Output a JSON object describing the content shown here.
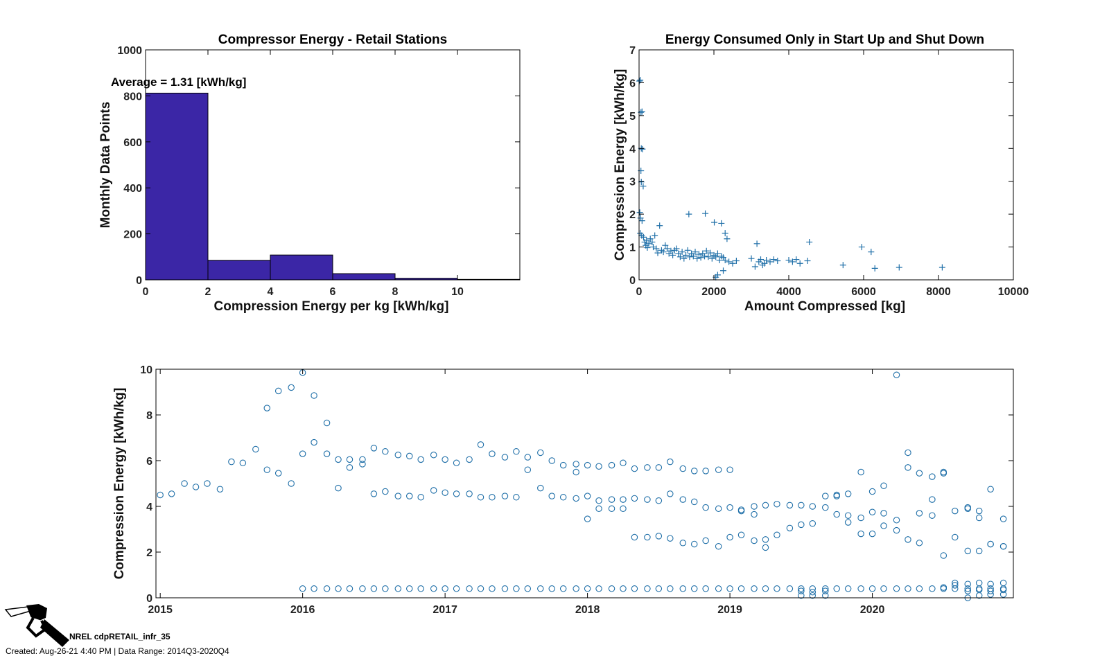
{
  "chart_data": [
    {
      "type": "bar",
      "title": "Compressor Energy - Retail Stations",
      "xlabel": "Compression Energy per kg [kWh/kg]",
      "ylabel": "Monthly Data Points",
      "annotation": "Average = 1.31 [kWh/kg]",
      "color": "#3b26a6",
      "xlim": [
        0,
        12
      ],
      "ylim": [
        0,
        1000
      ],
      "xticks": [
        0,
        2,
        4,
        6,
        8,
        10
      ],
      "yticks": [
        0,
        200,
        400,
        600,
        800,
        1000
      ],
      "bins": [
        [
          0,
          2
        ],
        [
          2,
          4
        ],
        [
          4,
          6
        ],
        [
          6,
          8
        ],
        [
          8,
          10
        ],
        [
          10,
          12
        ]
      ],
      "values": [
        812,
        85,
        108,
        27,
        7,
        2
      ]
    },
    {
      "type": "scatter",
      "title": "Energy Consumed Only in Start Up and Shut Down",
      "xlabel": "Amount Compressed [kg]",
      "ylabel": "Compression Energy [kWh/kg]",
      "marker": "+",
      "color": "#1f6fa8",
      "xlim": [
        0,
        10000
      ],
      "ylim": [
        0,
        7
      ],
      "xticks": [
        0,
        2000,
        4000,
        6000,
        8000,
        10000
      ],
      "yticks": [
        0,
        1,
        2,
        3,
        4,
        5,
        6,
        7
      ],
      "points": [
        [
          10,
          6.05
        ],
        [
          30,
          6.08
        ],
        [
          50,
          5.1
        ],
        [
          80,
          5.12
        ],
        [
          60,
          4.0
        ],
        [
          90,
          3.98
        ],
        [
          50,
          3.32
        ],
        [
          60,
          2.98
        ],
        [
          110,
          2.85
        ],
        [
          20,
          2.05
        ],
        [
          40,
          1.88
        ],
        [
          80,
          1.8
        ],
        [
          30,
          1.42
        ],
        [
          70,
          1.35
        ],
        [
          120,
          1.3
        ],
        [
          150,
          1.15
        ],
        [
          180,
          1.05
        ],
        [
          200,
          1.2
        ],
        [
          220,
          0.98
        ],
        [
          260,
          1.1
        ],
        [
          300,
          1.25
        ],
        [
          350,
          1.15
        ],
        [
          380,
          1.0
        ],
        [
          420,
          1.35
        ],
        [
          460,
          0.95
        ],
        [
          500,
          0.82
        ],
        [
          550,
          1.65
        ],
        [
          600,
          0.9
        ],
        [
          650,
          0.85
        ],
        [
          700,
          1.05
        ],
        [
          750,
          0.95
        ],
        [
          800,
          0.8
        ],
        [
          850,
          0.88
        ],
        [
          900,
          0.75
        ],
        [
          950,
          0.9
        ],
        [
          1000,
          0.95
        ],
        [
          1050,
          0.8
        ],
        [
          1100,
          0.7
        ],
        [
          1150,
          0.85
        ],
        [
          1200,
          0.65
        ],
        [
          1250,
          0.75
        ],
        [
          1300,
          0.9
        ],
        [
          1350,
          0.7
        ],
        [
          1400,
          0.8
        ],
        [
          1450,
          0.72
        ],
        [
          1500,
          0.85
        ],
        [
          1550,
          0.65
        ],
        [
          1600,
          0.78
        ],
        [
          1650,
          0.68
        ],
        [
          1700,
          0.8
        ],
        [
          1750,
          0.72
        ],
        [
          1800,
          0.88
        ],
        [
          1850,
          0.7
        ],
        [
          1900,
          0.82
        ],
        [
          1950,
          0.65
        ],
        [
          2000,
          0.75
        ],
        [
          2050,
          0.7
        ],
        [
          2100,
          0.8
        ],
        [
          2150,
          0.6
        ],
        [
          2200,
          0.72
        ],
        [
          2250,
          0.68
        ],
        [
          2300,
          0.6
        ],
        [
          1330,
          2.0
        ],
        [
          1770,
          2.02
        ],
        [
          2010,
          1.75
        ],
        [
          2200,
          1.72
        ],
        [
          2300,
          1.42
        ],
        [
          2350,
          1.25
        ],
        [
          2050,
          0.08
        ],
        [
          2100,
          0.15
        ],
        [
          2250,
          0.28
        ],
        [
          2400,
          0.55
        ],
        [
          2500,
          0.5
        ],
        [
          2600,
          0.58
        ],
        [
          3000,
          0.65
        ],
        [
          3100,
          0.4
        ],
        [
          3150,
          1.1
        ],
        [
          3200,
          0.55
        ],
        [
          3250,
          0.62
        ],
        [
          3300,
          0.45
        ],
        [
          3350,
          0.5
        ],
        [
          3400,
          0.6
        ],
        [
          3500,
          0.55
        ],
        [
          3600,
          0.62
        ],
        [
          3700,
          0.58
        ],
        [
          4000,
          0.6
        ],
        [
          4100,
          0.55
        ],
        [
          4200,
          0.62
        ],
        [
          4300,
          0.5
        ],
        [
          4500,
          0.58
        ],
        [
          4550,
          1.15
        ],
        [
          5450,
          0.45
        ],
        [
          5950,
          1.0
        ],
        [
          6200,
          0.85
        ],
        [
          6300,
          0.35
        ],
        [
          6950,
          0.38
        ],
        [
          8100,
          0.38
        ]
      ]
    },
    {
      "type": "scatter",
      "xlabel": "",
      "ylabel": "Compression Energy [kWh/kg]",
      "marker": "o",
      "color": "#1f6fa8",
      "xlim": [
        2014.97,
        2020.99
      ],
      "ylim": [
        0,
        10
      ],
      "xticks": [
        2015,
        2016,
        2017,
        2018,
        2019,
        2020
      ],
      "yticks": [
        0,
        2,
        4,
        6,
        8,
        10
      ],
      "series": [
        {
          "x": [
            2015.0,
            2015.08,
            2015.17,
            2015.25,
            2015.33,
            2015.42,
            2015.5,
            2015.58,
            2015.67,
            2015.75,
            2015.83,
            2015.92,
            2016.0,
            2016.08,
            2016.17,
            2016.25,
            2016.33,
            2016.42,
            2016.5,
            2016.58,
            2016.67,
            2016.75,
            2016.83,
            2016.92,
            2017.0,
            2017.08,
            2017.17,
            2017.25,
            2017.33,
            2017.42,
            2017.5,
            2017.58,
            2017.67,
            2017.75,
            2017.83,
            2017.92,
            2018.0,
            2018.08,
            2018.17,
            2018.25,
            2018.33,
            2018.42,
            2018.5,
            2018.58,
            2018.67,
            2018.75,
            2018.83,
            2018.92,
            2019.0,
            2019.08,
            2019.17,
            2019.25,
            2019.33,
            2019.42,
            2019.5,
            2019.58,
            2019.67,
            2019.75,
            2019.83,
            2019.92,
            2020.0,
            2020.08,
            2020.17,
            2020.25,
            2020.33,
            2020.42,
            2020.5,
            2020.58,
            2020.67,
            2020.75,
            2020.83,
            2020.92
          ],
          "y": [
            4.5,
            4.55,
            5.0,
            4.85,
            5.0,
            4.75,
            5.95,
            5.9,
            6.5,
            8.3,
            9.05,
            9.2,
            9.85,
            8.85,
            7.65,
            6.05,
            6.05,
            6.05,
            6.55,
            6.4,
            6.25,
            6.2,
            6.05,
            6.25,
            6.05,
            5.9,
            6.05,
            6.7,
            6.3,
            6.15,
            6.4,
            6.15,
            6.35,
            6.0,
            5.8,
            5.85,
            5.8,
            5.75,
            5.8,
            5.9,
            5.65,
            5.7,
            5.7,
            5.95,
            5.65,
            5.55,
            5.55,
            5.6,
            5.6,
            3.8,
            4.0,
            4.05,
            4.1,
            4.05,
            4.05,
            4.0,
            4.45,
            4.5,
            4.55,
            5.5,
            4.65,
            4.9,
            9.75,
            6.35,
            5.45,
            5.3,
            5.5,
            3.8,
            3.95,
            3.8,
            4.75,
            3.45
          ]
        },
        {
          "x": [
            2015.75,
            2015.83,
            2015.92,
            2016.0,
            2016.08,
            2016.17,
            2016.25,
            2016.33,
            2016.42,
            2016.5,
            2016.58,
            2016.67,
            2016.75,
            2016.83,
            2016.92,
            2017.0,
            2017.08,
            2017.17,
            2017.25,
            2017.33,
            2017.42,
            2017.5,
            2017.58,
            2017.67,
            2017.75,
            2017.83,
            2017.92,
            2018.0,
            2018.08,
            2018.17,
            2018.25,
            2018.33,
            2018.42,
            2018.5,
            2018.58,
            2018.67,
            2018.75,
            2018.83,
            2018.92,
            2019.0,
            2019.08,
            2019.17,
            2019.25,
            2019.33,
            2019.42,
            2019.5,
            2019.58,
            2019.67,
            2019.75,
            2019.83,
            2019.92,
            2020.0,
            2020.08,
            2020.17,
            2020.25,
            2020.33,
            2020.42,
            2020.5,
            2020.58,
            2020.67,
            2020.75,
            2020.83,
            2020.92
          ],
          "y": [
            5.6,
            5.45,
            5.0,
            6.3,
            6.8,
            6.3,
            4.8,
            5.7,
            5.85,
            4.55,
            4.65,
            4.45,
            4.45,
            4.4,
            4.7,
            4.6,
            4.55,
            4.55,
            4.4,
            4.4,
            4.45,
            4.4,
            5.6,
            4.8,
            4.45,
            4.4,
            4.35,
            4.45,
            4.25,
            4.3,
            4.3,
            4.35,
            4.3,
            4.25,
            4.55,
            4.3,
            4.2,
            3.95,
            3.9,
            3.95,
            3.85,
            3.65,
            2.55,
            2.75,
            3.05,
            3.2,
            3.25,
            3.95,
            3.65,
            3.6,
            2.8,
            2.8,
            3.7,
            2.95,
            2.55,
            2.4,
            4.3,
            1.85,
            0.65,
            3.9,
            2.05,
            2.35,
            2.25
          ]
        },
        {
          "x": [
            2017.92,
            2018.0,
            2018.08,
            2018.17,
            2018.25,
            2018.33,
            2018.42,
            2018.5,
            2018.58,
            2018.67,
            2018.75,
            2018.83,
            2018.92,
            2019.0,
            2019.08,
            2019.17,
            2019.25,
            2019.75,
            2019.83,
            2019.92,
            2020.0,
            2020.08,
            2020.17,
            2020.25,
            2020.33,
            2020.42,
            2020.5,
            2020.58,
            2020.67,
            2020.75,
            2020.83,
            2020.92
          ],
          "y": [
            5.5,
            3.45,
            3.9,
            3.9,
            3.9,
            2.65,
            2.65,
            2.7,
            2.6,
            2.4,
            2.35,
            2.5,
            2.25,
            2.65,
            2.75,
            2.5,
            2.2,
            4.45,
            3.3,
            3.5,
            3.75,
            3.15,
            3.4,
            5.7,
            3.7,
            3.6,
            5.45,
            2.65,
            2.05,
            3.5,
            2.35,
            2.25
          ]
        },
        {
          "x": [
            2016.0,
            2016.08,
            2016.17,
            2016.25,
            2016.33,
            2016.42,
            2016.5,
            2016.58,
            2016.67,
            2016.75,
            2016.83,
            2016.92,
            2017.0,
            2017.08,
            2017.17,
            2017.25,
            2017.33,
            2017.42,
            2017.5,
            2017.58,
            2017.67,
            2017.75,
            2017.83,
            2017.92,
            2018.0,
            2018.08,
            2018.17,
            2018.25,
            2018.33,
            2018.42,
            2018.5,
            2018.58,
            2018.67,
            2018.75,
            2018.83,
            2018.92,
            2019.0,
            2019.08,
            2019.17,
            2019.25,
            2019.33,
            2019.42,
            2019.5,
            2019.58,
            2019.67,
            2019.75,
            2019.83,
            2019.92,
            2020.0,
            2020.08,
            2020.17,
            2020.25,
            2020.33,
            2020.42,
            2020.5,
            2020.58,
            2020.67,
            2020.75,
            2020.83,
            2020.92
          ],
          "y": [
            0.4,
            0.4,
            0.4,
            0.4,
            0.4,
            0.4,
            0.4,
            0.4,
            0.4,
            0.4,
            0.4,
            0.4,
            0.4,
            0.4,
            0.4,
            0.4,
            0.4,
            0.4,
            0.4,
            0.4,
            0.4,
            0.4,
            0.4,
            0.4,
            0.4,
            0.4,
            0.4,
            0.4,
            0.4,
            0.4,
            0.4,
            0.4,
            0.4,
            0.4,
            0.4,
            0.4,
            0.4,
            0.4,
            0.4,
            0.4,
            0.4,
            0.4,
            0.4,
            0.4,
            0.4,
            0.4,
            0.4,
            0.4,
            0.4,
            0.4,
            0.4,
            0.4,
            0.4,
            0.4,
            0.4,
            0.4,
            0.4,
            0.4,
            0.4,
            0.4
          ]
        },
        {
          "x": [
            2019.5,
            2019.58,
            2019.67,
            2019.5,
            2019.58,
            2019.67,
            2020.5,
            2020.58,
            2020.67,
            2020.75,
            2020.83,
            2020.92,
            2020.67,
            2020.75,
            2020.83,
            2020.92,
            2020.67,
            2020.75,
            2020.83,
            2020.92
          ],
          "y": [
            0.3,
            0.25,
            0.3,
            0.1,
            0.1,
            0.1,
            0.45,
            0.55,
            0.6,
            0.65,
            0.6,
            0.65,
            0.3,
            0.35,
            0.3,
            0.35,
            0.0,
            0.1,
            0.15,
            0.15
          ]
        }
      ]
    }
  ],
  "footer": {
    "code": "NREL cdpRETAIL_infr_35",
    "created": "Created: Aug-26-21  4:40 PM | Data Range: 2014Q3-2020Q4"
  }
}
